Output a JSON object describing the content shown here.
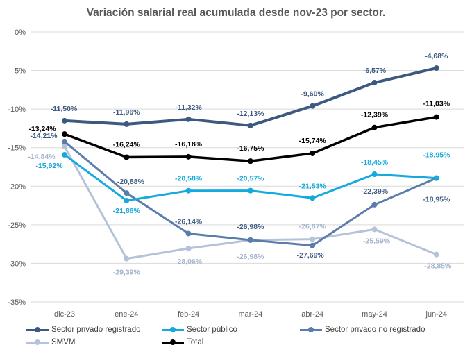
{
  "chart_data": {
    "type": "line",
    "title": "Variación salarial real acumulada desde nov-23 por sector.",
    "xlabel": "",
    "ylabel": "",
    "categories": [
      "dic-23",
      "ene-24",
      "feb-24",
      "mar-24",
      "abr-24",
      "may-24",
      "jun-24"
    ],
    "ylim": [
      -35,
      0
    ],
    "yticks": [
      0,
      -5,
      -10,
      -15,
      -20,
      -25,
      -30,
      -35
    ],
    "ytick_labels": [
      "0%",
      "-5%",
      "-10%",
      "-15%",
      "-20%",
      "-25%",
      "-30%",
      "-35%"
    ],
    "grid": "horizontal",
    "legend_position": "bottom",
    "series": [
      {
        "name": "Sector privado registrado",
        "color": "#3C5A80",
        "values": [
          -11.5,
          -11.96,
          -11.32,
          -12.13,
          -9.6,
          -6.57,
          -4.68
        ],
        "labels": [
          "-11,50%",
          "-11,96%",
          "-11,32%",
          "-12,13%",
          "-9,60%",
          "-6,57%",
          "-4,68%"
        ]
      },
      {
        "name": "Sector público",
        "color": "#15A9DD",
        "values": [
          -15.92,
          -21.86,
          -20.58,
          -20.57,
          -21.53,
          -18.45,
          -18.95
        ],
        "labels": [
          "-15,92%",
          "-21,86%",
          "-20,58%",
          "-20,57%",
          "-21,53%",
          "-18,45%",
          "-18,95%"
        ]
      },
      {
        "name": "Sector privado no registrado",
        "color": "#5B7DAB",
        "values": [
          -14.21,
          -20.88,
          -26.14,
          -26.98,
          -27.69,
          -22.39,
          -18.95
        ],
        "labels": [
          "-14,21%",
          "-20,88%",
          "-26,14%",
          "-26,98%",
          "-27,69%",
          "-22,39%",
          "-18,95%"
        ]
      },
      {
        "name": "SMVM",
        "color": "#B4C3D9",
        "values": [
          -14.84,
          -29.39,
          -28.06,
          -26.98,
          -26.87,
          -25.59,
          -28.85
        ],
        "labels": [
          "-14,84%",
          "-29,39%",
          "-28,06%",
          "-26,98%",
          "-26,87%",
          "-25,59%",
          "-28,85%"
        ]
      },
      {
        "name": "Total",
        "color": "#000000",
        "values": [
          -13.24,
          -16.24,
          -16.18,
          -16.75,
          -15.74,
          -12.39,
          -11.03
        ],
        "labels": [
          "-13,24%",
          "-16,24%",
          "-16,18%",
          "-16,75%",
          "-15,74%",
          "-12,39%",
          "-11,03%"
        ]
      }
    ]
  }
}
